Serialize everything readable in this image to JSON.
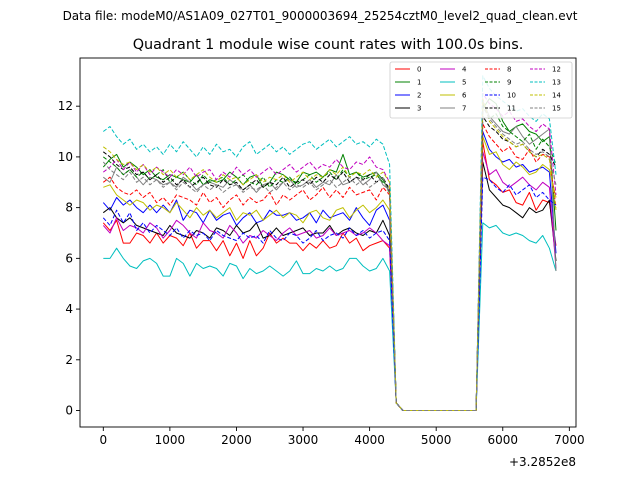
{
  "chart_data": {
    "type": "line",
    "suptitle": "Data file: modeM0/AS1A09_027T01_9000003694_25254cztM0_level2_quad_clean.evt",
    "title": "Quadrant 1 module wise count rates with 100.0s bins.",
    "xlabel": "",
    "ylabel": "",
    "x_offset_label": "+3.2852e8",
    "xlim": [
      -350,
      7100
    ],
    "ylim": [
      -0.65,
      13.9
    ],
    "xticks": [
      0,
      1000,
      2000,
      3000,
      4000,
      5000,
      6000,
      7000
    ],
    "xtick_labels": [
      "0",
      "1000",
      "2000",
      "3000",
      "4000",
      "5000",
      "6000",
      "7000"
    ],
    "yticks": [
      0,
      2,
      4,
      6,
      8,
      10,
      12
    ],
    "ytick_labels": [
      "0",
      "2",
      "4",
      "6",
      "8",
      "10",
      "12"
    ],
    "legend": "top-right",
    "x": [
      0,
      100,
      200,
      300,
      400,
      500,
      600,
      700,
      800,
      900,
      1000,
      1100,
      1200,
      1300,
      1400,
      1500,
      1600,
      1700,
      1800,
      1900,
      2000,
      2100,
      2200,
      2300,
      2400,
      2500,
      2600,
      2700,
      2800,
      2900,
      3000,
      3100,
      3200,
      3300,
      3400,
      3500,
      3600,
      3700,
      3800,
      3900,
      4000,
      4100,
      4200,
      4300,
      4400,
      4500,
      4600,
      4700,
      4800,
      4900,
      5000,
      5100,
      5200,
      5300,
      5400,
      5500,
      5600,
      5700,
      5800,
      5900,
      6000,
      6100,
      6200,
      6300,
      6400,
      6500,
      6600,
      6700,
      6800
    ],
    "series": [
      {
        "name": "0",
        "color": "#ff0000",
        "dash": false,
        "values": [
          7.4,
          7.1,
          7.5,
          6.6,
          6.6,
          7.0,
          6.9,
          6.6,
          7.0,
          6.6,
          6.9,
          6.8,
          6.5,
          7.0,
          6.4,
          6.7,
          6.7,
          6.3,
          6.7,
          6.1,
          6.6,
          6.0,
          6.7,
          6.1,
          6.4,
          7.0,
          6.6,
          6.8,
          6.6,
          6.6,
          6.3,
          6.6,
          6.4,
          6.7,
          6.4,
          6.5,
          7.0,
          6.6,
          6.8,
          6.3,
          6.5,
          6.6,
          6.7,
          6.4,
          0.3,
          0,
          0,
          0,
          0,
          0,
          0,
          0,
          0,
          0,
          0,
          0,
          0,
          10.6,
          9.1,
          8.9,
          8.6,
          8.7,
          8.2,
          8.1,
          8.6,
          7.9,
          8.3,
          8.2,
          6.5
        ]
      },
      {
        "name": "1",
        "color": "#008000",
        "dash": false,
        "values": [
          9.6,
          9.9,
          10.1,
          9.6,
          9.8,
          9.6,
          9.3,
          9.5,
          9.2,
          9.1,
          9.3,
          9.2,
          9.1,
          9.0,
          9.3,
          8.9,
          9.1,
          9.0,
          9.1,
          9.4,
          9.2,
          8.9,
          9.2,
          9.3,
          8.8,
          9.0,
          9.4,
          9.3,
          9.1,
          9.0,
          9.4,
          9.3,
          9.4,
          9.2,
          9.5,
          9.4,
          10.1,
          9.3,
          9.4,
          9.2,
          9.3,
          9.4,
          9.1,
          8.6,
          0.3,
          0,
          0,
          0,
          0,
          0,
          0,
          0,
          0,
          0,
          0,
          0,
          0,
          11.9,
          12.3,
          12.1,
          11.4,
          11.0,
          11.2,
          11.3,
          11.0,
          10.9,
          10.6,
          10.8,
          7.1
        ]
      },
      {
        "name": "2",
        "color": "#0000ff",
        "dash": false,
        "values": [
          8.2,
          7.9,
          8.4,
          8.1,
          8.3,
          8.0,
          7.8,
          8.1,
          7.8,
          8.1,
          7.8,
          8.3,
          7.5,
          7.9,
          7.8,
          7.4,
          7.9,
          7.5,
          7.7,
          7.8,
          7.3,
          7.6,
          7.8,
          7.4,
          7.5,
          7.9,
          7.7,
          7.7,
          7.8,
          7.5,
          7.6,
          7.8,
          7.4,
          7.9,
          7.6,
          7.7,
          7.8,
          7.5,
          8.0,
          7.6,
          7.3,
          7.9,
          8.1,
          7.5,
          0.3,
          0,
          0,
          0,
          0,
          0,
          0,
          0,
          0,
          0,
          0,
          0,
          0,
          11.0,
          10.3,
          10.0,
          9.8,
          9.9,
          9.6,
          9.7,
          9.4,
          9.5,
          9.6,
          9.4,
          6.2
        ]
      },
      {
        "name": "3",
        "color": "#000000",
        "dash": false,
        "values": [
          7.8,
          8.0,
          7.6,
          7.4,
          7.6,
          7.3,
          7.2,
          7.1,
          7.0,
          6.9,
          7.3,
          7.0,
          6.9,
          6.8,
          7.1,
          7.0,
          6.8,
          7.2,
          7.1,
          6.9,
          7.3,
          7.0,
          7.1,
          7.4,
          6.8,
          6.9,
          7.2,
          6.9,
          7.0,
          7.1,
          7.2,
          6.9,
          7.0,
          7.0,
          7.3,
          6.9,
          7.1,
          7.2,
          7.0,
          6.9,
          7.1,
          7.0,
          7.5,
          6.9,
          0.3,
          0,
          0,
          0,
          0,
          0,
          0,
          0,
          0,
          0,
          0,
          0,
          0,
          9.8,
          8.7,
          8.4,
          8.1,
          8.0,
          7.8,
          7.6,
          8.0,
          7.8,
          7.9,
          8.3,
          5.9
        ]
      },
      {
        "name": "4",
        "color": "#c000c0",
        "dash": false,
        "values": [
          7.3,
          7.0,
          7.6,
          7.1,
          7.3,
          7.2,
          7.0,
          7.4,
          7.2,
          6.8,
          7.1,
          7.5,
          7.3,
          7.0,
          6.8,
          7.4,
          7.1,
          7.0,
          6.8,
          7.3,
          7.0,
          6.6,
          6.9,
          6.8,
          7.1,
          6.9,
          6.7,
          7.0,
          7.2,
          6.9,
          7.0,
          7.1,
          6.8,
          6.9,
          7.2,
          6.9,
          7.0,
          7.1,
          6.9,
          7.0,
          7.2,
          7.0,
          6.7,
          6.5,
          0.3,
          0,
          0,
          0,
          0,
          0,
          0,
          0,
          0,
          0,
          0,
          0,
          0,
          10.2,
          9.3,
          9.5,
          9.0,
          8.8,
          9.0,
          9.2,
          8.9,
          8.7,
          9.0,
          8.8,
          5.6
        ]
      },
      {
        "name": "5",
        "color": "#00bfbf",
        "dash": false,
        "values": [
          6.0,
          6.0,
          6.4,
          6.0,
          5.7,
          5.6,
          5.9,
          6.0,
          5.8,
          5.3,
          5.3,
          6.0,
          5.8,
          5.3,
          5.8,
          5.6,
          5.7,
          5.6,
          5.3,
          5.8,
          5.7,
          5.2,
          5.6,
          5.4,
          5.5,
          5.7,
          5.5,
          5.3,
          5.5,
          5.9,
          5.4,
          5.4,
          5.6,
          5.5,
          5.7,
          5.5,
          5.6,
          6.0,
          6.0,
          5.7,
          5.5,
          5.6,
          6.0,
          5.5,
          0.3,
          0,
          0,
          0,
          0,
          0,
          0,
          0,
          0,
          0,
          0,
          0,
          0,
          7.4,
          7.2,
          7.3,
          7.0,
          6.9,
          7.0,
          6.9,
          6.7,
          6.6,
          6.9,
          6.4,
          5.5
        ]
      },
      {
        "name": "6",
        "color": "#bfbf00",
        "dash": false,
        "values": [
          8.8,
          8.9,
          8.5,
          8.3,
          8.1,
          8.3,
          8.2,
          7.9,
          8.1,
          8.0,
          7.8,
          8.2,
          7.9,
          7.6,
          8.0,
          7.7,
          7.9,
          7.6,
          7.8,
          8.0,
          7.5,
          7.8,
          7.7,
          7.9,
          7.5,
          7.7,
          7.9,
          7.6,
          7.8,
          7.7,
          7.4,
          7.8,
          7.9,
          7.6,
          7.5,
          7.9,
          8.0,
          7.6,
          7.9,
          8.1,
          7.8,
          8.0,
          8.3,
          7.9,
          0.3,
          0,
          0,
          0,
          0,
          0,
          0,
          0,
          0,
          0,
          0,
          0,
          0,
          10.8,
          10.1,
          10.2,
          9.7,
          9.5,
          9.8,
          9.6,
          9.3,
          9.4,
          9.7,
          9.5,
          8.4
        ]
      },
      {
        "name": "7",
        "color": "#808080",
        "dash": false,
        "values": [
          9.2,
          9.0,
          9.6,
          9.3,
          9.5,
          9.2,
          8.9,
          9.2,
          9.1,
          8.9,
          9.0,
          8.8,
          9.2,
          9.0,
          8.7,
          8.9,
          9.0,
          8.9,
          8.8,
          9.1,
          8.9,
          8.7,
          8.9,
          8.6,
          8.9,
          9.0,
          8.7,
          9.0,
          9.1,
          8.8,
          8.9,
          9.1,
          8.8,
          9.0,
          8.9,
          9.3,
          8.9,
          9.0,
          9.2,
          8.9,
          9.1,
          9.4,
          8.9,
          8.7,
          0.3,
          0,
          0,
          0,
          0,
          0,
          0,
          0,
          0,
          0,
          0,
          0,
          0,
          12.2,
          11.6,
          11.3,
          11.0,
          10.9,
          11.2,
          10.8,
          10.5,
          10.7,
          10.9,
          11.1,
          5.5
        ]
      },
      {
        "name": "8",
        "color": "#ff0000",
        "dash": true,
        "values": [
          9.0,
          9.2,
          8.8,
          8.6,
          8.5,
          8.7,
          8.4,
          8.6,
          8.2,
          8.4,
          8.1,
          8.5,
          8.4,
          8.3,
          8.1,
          8.6,
          8.2,
          8.4,
          8.0,
          8.3,
          8.5,
          8.1,
          8.4,
          8.2,
          8.3,
          8.6,
          8.1,
          8.5,
          8.3,
          8.5,
          8.7,
          8.3,
          8.5,
          8.8,
          8.4,
          8.7,
          8.4,
          8.8,
          8.5,
          8.6,
          8.7,
          8.3,
          8.8,
          8.5,
          0.3,
          0,
          0,
          0,
          0,
          0,
          0,
          0,
          0,
          0,
          0,
          0,
          0,
          11.3,
          10.8,
          10.5,
          10.2,
          10.4,
          10.0,
          9.9,
          10.3,
          9.8,
          10.1,
          10.0,
          8.0
        ]
      },
      {
        "name": "9",
        "color": "#008000",
        "dash": true,
        "values": [
          10.0,
          9.8,
          9.6,
          9.3,
          9.5,
          9.2,
          9.4,
          9.1,
          9.3,
          9.5,
          9.0,
          9.2,
          9.4,
          9.1,
          8.9,
          9.3,
          9.0,
          9.1,
          9.2,
          8.9,
          9.1,
          9.3,
          9.0,
          8.9,
          9.2,
          8.8,
          9.1,
          9.0,
          9.2,
          8.9,
          9.1,
          9.3,
          9.0,
          9.2,
          9.4,
          9.1,
          9.5,
          9.2,
          9.4,
          9.1,
          9.2,
          9.3,
          9.0,
          8.8,
          0.3,
          0,
          0,
          0,
          0,
          0,
          0,
          0,
          0,
          0,
          0,
          0,
          0,
          12.1,
          11.5,
          11.7,
          11.2,
          11.0,
          10.8,
          10.6,
          10.9,
          10.3,
          10.7,
          10.4,
          9.7
        ]
      },
      {
        "name": "10",
        "color": "#0000ff",
        "dash": true,
        "values": [
          7.6,
          7.3,
          7.9,
          7.4,
          7.8,
          7.1,
          7.4,
          7.0,
          7.3,
          7.1,
          6.9,
          7.2,
          6.8,
          7.1,
          6.9,
          7.0,
          6.7,
          7.1,
          6.9,
          6.8,
          6.7,
          7.0,
          6.8,
          6.9,
          6.6,
          7.1,
          6.8,
          6.7,
          7.0,
          6.9,
          6.6,
          6.8,
          7.1,
          6.7,
          6.9,
          7.0,
          6.8,
          7.2,
          6.9,
          7.1,
          6.8,
          7.0,
          7.1,
          6.7,
          0.3,
          0,
          0,
          0,
          0,
          0,
          0,
          0,
          0,
          0,
          0,
          0,
          0,
          9.2,
          9.1,
          8.8,
          8.6,
          8.9,
          8.5,
          8.7,
          8.9,
          8.4,
          8.6,
          8.3,
          8.1
        ]
      },
      {
        "name": "11",
        "color": "#000000",
        "dash": true,
        "values": [
          10.2,
          10.0,
          9.7,
          9.5,
          9.6,
          9.3,
          9.4,
          9.1,
          9.3,
          9.0,
          9.2,
          8.9,
          9.1,
          8.8,
          9.0,
          9.2,
          8.9,
          8.8,
          9.1,
          8.9,
          9.0,
          8.7,
          8.9,
          9.1,
          8.8,
          9.0,
          8.9,
          9.2,
          8.8,
          9.0,
          9.1,
          8.9,
          9.2,
          9.0,
          9.3,
          9.1,
          9.4,
          9.0,
          9.2,
          9.1,
          9.3,
          9.0,
          9.2,
          8.7,
          0.3,
          0,
          0,
          0,
          0,
          0,
          0,
          0,
          0,
          0,
          0,
          0,
          0,
          11.6,
          11.2,
          11.0,
          10.7,
          10.6,
          10.4,
          10.5,
          10.2,
          10.0,
          10.3,
          10.1,
          9.6
        ]
      },
      {
        "name": "12",
        "color": "#c000c0",
        "dash": true,
        "values": [
          9.4,
          9.6,
          9.9,
          9.5,
          9.8,
          9.4,
          9.7,
          9.3,
          9.6,
          9.4,
          9.2,
          9.5,
          9.3,
          9.6,
          9.2,
          9.4,
          9.5,
          9.1,
          9.4,
          9.2,
          9.6,
          9.3,
          9.5,
          9.2,
          9.4,
          9.6,
          9.3,
          9.5,
          9.7,
          9.4,
          9.6,
          9.8,
          9.5,
          9.7,
          9.6,
          9.9,
          9.6,
          9.5,
          9.8,
          9.7,
          10.0,
          9.6,
          9.5,
          9.0,
          0.3,
          0,
          0,
          0,
          0,
          0,
          0,
          0,
          0,
          0,
          0,
          0,
          0,
          12.5,
          12.1,
          11.9,
          11.6,
          11.8,
          11.4,
          11.5,
          11.2,
          11.0,
          11.3,
          11.1,
          8.5
        ]
      },
      {
        "name": "13",
        "color": "#00bfbf",
        "dash": true,
        "values": [
          11.0,
          11.2,
          10.8,
          10.5,
          10.7,
          10.3,
          10.5,
          10.2,
          10.4,
          10.1,
          10.5,
          10.2,
          10.6,
          10.3,
          10.0,
          10.4,
          10.1,
          10.5,
          10.2,
          10.3,
          10.0,
          10.4,
          10.6,
          10.1,
          10.3,
          10.5,
          10.2,
          10.4,
          10.1,
          10.3,
          10.5,
          10.6,
          10.3,
          10.5,
          10.7,
          10.4,
          10.6,
          10.8,
          10.5,
          10.6,
          10.4,
          10.7,
          10.5,
          9.7,
          0.3,
          0,
          0,
          0,
          0,
          0,
          0,
          0,
          0,
          0,
          0,
          0,
          0,
          13.2,
          12.7,
          12.4,
          12.2,
          12.0,
          11.8,
          11.9,
          11.6,
          11.4,
          11.7,
          11.5,
          9.3
        ]
      },
      {
        "name": "14",
        "color": "#bfbf00",
        "dash": true,
        "values": [
          10.4,
          10.2,
          9.9,
          9.7,
          9.8,
          9.5,
          9.7,
          9.4,
          9.6,
          9.3,
          9.5,
          9.2,
          9.4,
          9.1,
          9.3,
          9.5,
          9.2,
          9.0,
          9.3,
          9.1,
          9.2,
          8.9,
          9.1,
          9.3,
          9.0,
          9.2,
          9.1,
          9.3,
          9.0,
          9.2,
          9.4,
          9.1,
          9.3,
          9.2,
          9.5,
          9.3,
          9.6,
          9.2,
          9.4,
          9.3,
          9.5,
          9.2,
          9.4,
          9.0,
          0.3,
          0,
          0,
          0,
          0,
          0,
          0,
          0,
          0,
          0,
          0,
          0,
          0,
          12.3,
          11.4,
          11.1,
          10.8,
          10.6,
          10.4,
          10.5,
          10.2,
          10.0,
          10.1,
          9.9,
          7.9
        ]
      },
      {
        "name": "15",
        "color": "#808080",
        "dash": true,
        "values": [
          9.8,
          9.5,
          9.3,
          9.1,
          9.4,
          9.0,
          9.2,
          8.9,
          9.1,
          8.8,
          9.0,
          8.7,
          9.0,
          8.8,
          8.6,
          8.9,
          8.7,
          8.9,
          8.6,
          8.8,
          8.9,
          8.6,
          8.8,
          8.7,
          8.9,
          8.6,
          8.8,
          9.0,
          8.7,
          8.9,
          8.8,
          9.0,
          8.7,
          8.9,
          9.1,
          8.8,
          9.0,
          9.2,
          8.9,
          9.1,
          8.8,
          9.0,
          9.2,
          8.5,
          0.3,
          0,
          0,
          0,
          0,
          0,
          0,
          0,
          0,
          0,
          0,
          0,
          0,
          12.0,
          11.5,
          11.2,
          10.9,
          10.7,
          10.5,
          10.6,
          10.3,
          10.1,
          10.2,
          10.0,
          8.9
        ]
      }
    ]
  }
}
